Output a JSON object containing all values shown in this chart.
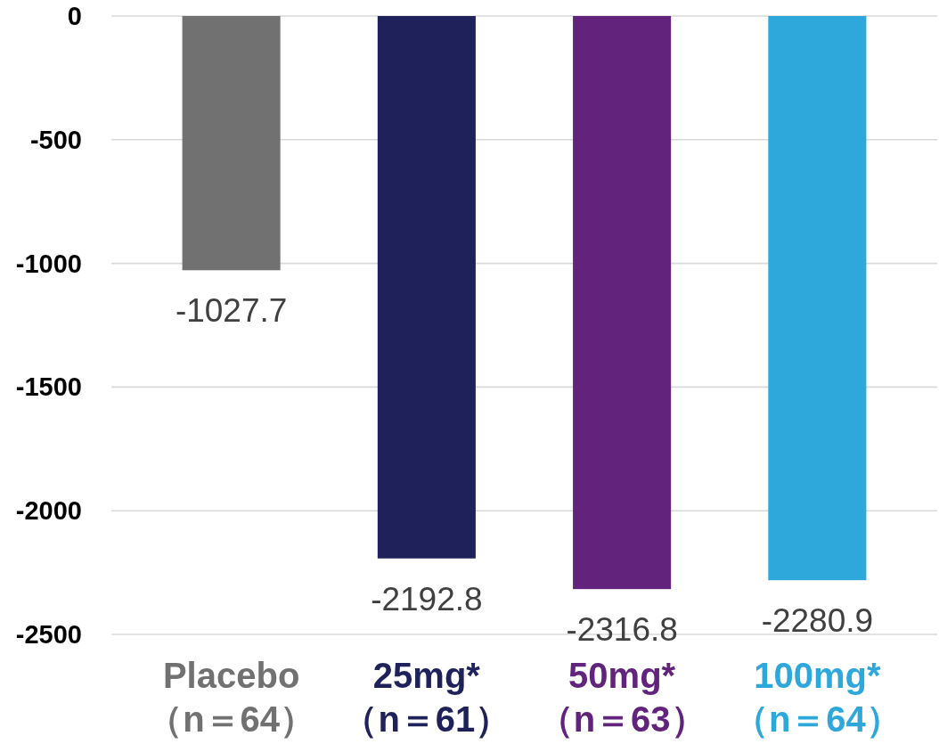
{
  "chart_data": {
    "type": "bar",
    "categories": [
      "Placebo\n（n＝64）",
      "25mg*\n（n＝61）",
      "50mg*\n（n＝63）",
      "100mg*\n（n＝64）"
    ],
    "values": [
      -1027.7,
      -2192.8,
      -2316.8,
      -2280.9
    ],
    "colors": [
      "#717171",
      "#1f215a",
      "#61237b",
      "#2ea7db"
    ],
    "ylim": [
      -2500,
      0
    ],
    "yticks": [
      -2500,
      -2000,
      -1500,
      -1000,
      -500,
      0
    ],
    "grid": "y",
    "data_labels": true
  }
}
